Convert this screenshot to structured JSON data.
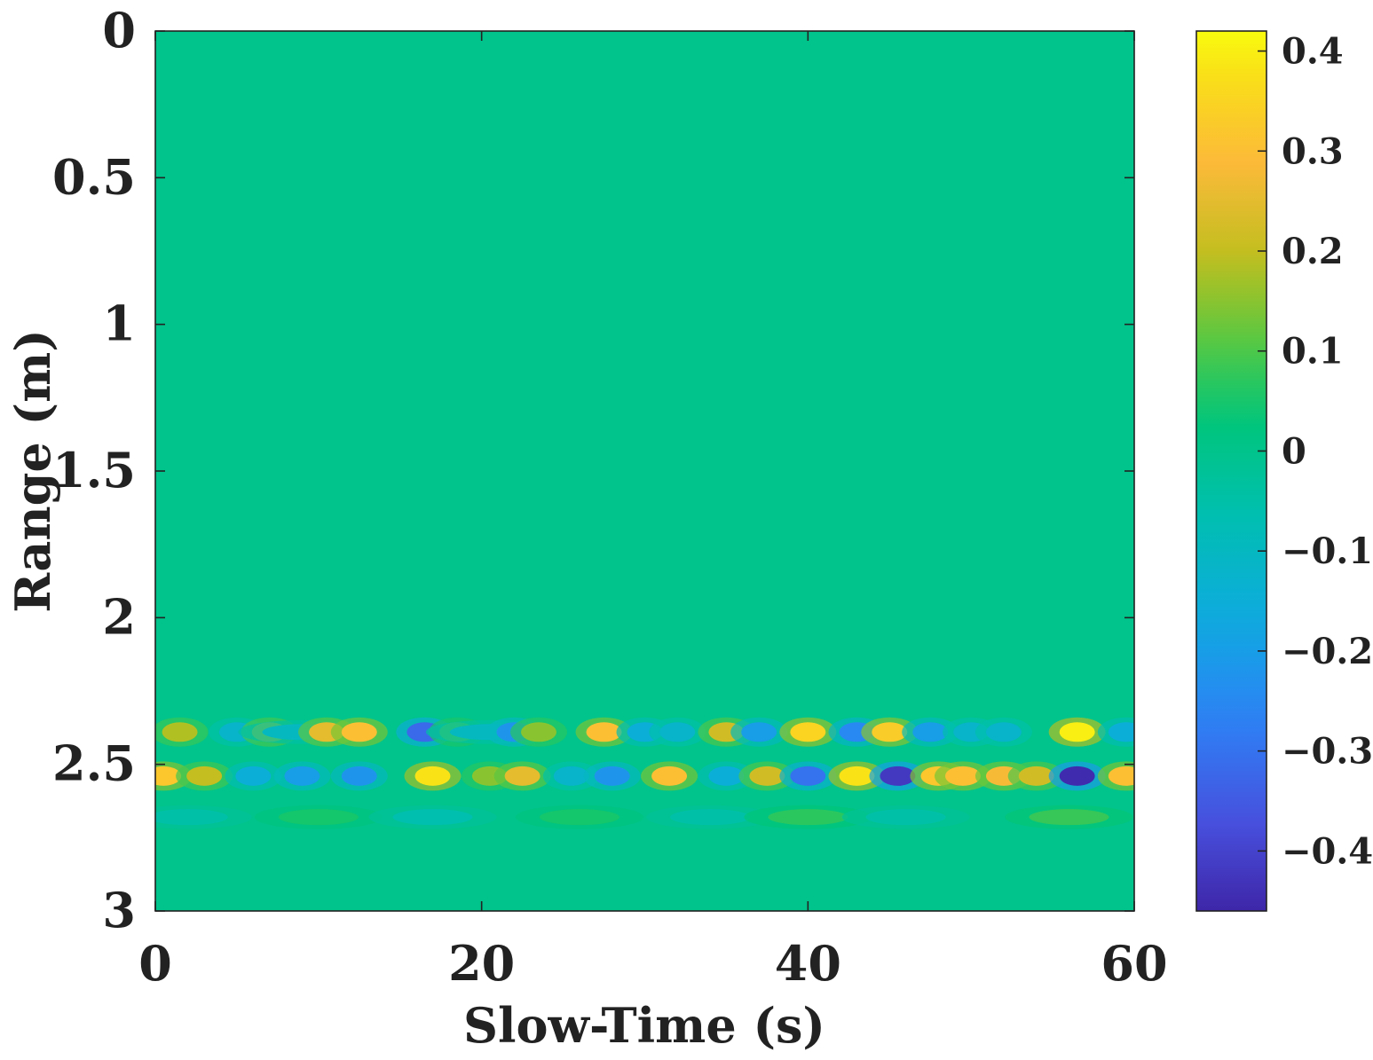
{
  "chart_data": {
    "type": "heatmap",
    "title": "",
    "xlabel": "Slow-Time (s)",
    "ylabel": "Range (m)",
    "xlim": [
      0,
      60
    ],
    "ylim": [
      0,
      3
    ],
    "y_axis_direction": "reversed",
    "x_ticks": [
      "0",
      "20",
      "40",
      "60"
    ],
    "y_ticks": [
      "0",
      "0.5",
      "1",
      "1.5",
      "2",
      "2.5",
      "3"
    ],
    "colorbar": {
      "range": [
        -0.46,
        0.42
      ],
      "ticks": [
        "0.4",
        "0.3",
        "0.2",
        "0.1",
        "0",
        "−0.1",
        "−0.2",
        "−0.3",
        "−0.4"
      ],
      "tick_values": [
        0.4,
        0.3,
        0.2,
        0.1,
        0,
        -0.1,
        -0.2,
        -0.3,
        -0.4
      ],
      "colormap": "parula"
    },
    "background_value": 0,
    "bands": [
      {
        "range_m": 2.39,
        "blobs": [
          {
            "t": 1.5,
            "v": 0.18
          },
          {
            "t": 5,
            "v": -0.12
          },
          {
            "t": 7,
            "v": 0.2
          },
          {
            "t": 9,
            "v": -0.1
          },
          {
            "t": 10.5,
            "v": 0.25
          },
          {
            "t": 12.5,
            "v": 0.3
          },
          {
            "t": 16.5,
            "v": -0.32
          },
          {
            "t": 18.5,
            "v": 0.12
          },
          {
            "t": 20.5,
            "v": -0.1
          },
          {
            "t": 22,
            "v": -0.22
          },
          {
            "t": 23.5,
            "v": 0.15
          },
          {
            "t": 27.5,
            "v": 0.3
          },
          {
            "t": 30,
            "v": -0.15
          },
          {
            "t": 32,
            "v": -0.12
          },
          {
            "t": 35,
            "v": 0.22
          },
          {
            "t": 37,
            "v": -0.2
          },
          {
            "t": 40,
            "v": 0.35
          },
          {
            "t": 43,
            "v": -0.25
          },
          {
            "t": 45,
            "v": 0.33
          },
          {
            "t": 47.5,
            "v": -0.2
          },
          {
            "t": 50,
            "v": -0.12
          },
          {
            "t": 52,
            "v": -0.12
          },
          {
            "t": 56.5,
            "v": 0.4
          },
          {
            "t": 59.5,
            "v": -0.15
          }
        ]
      },
      {
        "range_m": 2.54,
        "blobs": [
          {
            "t": 0.5,
            "v": 0.32
          },
          {
            "t": 3,
            "v": 0.2
          },
          {
            "t": 6,
            "v": -0.15
          },
          {
            "t": 9,
            "v": -0.2
          },
          {
            "t": 12.5,
            "v": -0.22
          },
          {
            "t": 17,
            "v": 0.38
          },
          {
            "t": 20.5,
            "v": 0.15
          },
          {
            "t": 22.5,
            "v": 0.25
          },
          {
            "t": 25.5,
            "v": -0.12
          },
          {
            "t": 28,
            "v": -0.22
          },
          {
            "t": 31.5,
            "v": 0.3
          },
          {
            "t": 35,
            "v": -0.15
          },
          {
            "t": 37.5,
            "v": 0.22
          },
          {
            "t": 40,
            "v": -0.3
          },
          {
            "t": 43,
            "v": 0.38
          },
          {
            "t": 45.5,
            "v": -0.42
          },
          {
            "t": 48,
            "v": 0.32
          },
          {
            "t": 49.5,
            "v": 0.3
          },
          {
            "t": 52,
            "v": 0.28
          },
          {
            "t": 54,
            "v": 0.22
          },
          {
            "t": 56.5,
            "v": -0.45
          },
          {
            "t": 59.5,
            "v": 0.3
          }
        ]
      },
      {
        "range_m": 2.68,
        "blobs": [
          {
            "t": 2,
            "v": -0.05
          },
          {
            "t": 10,
            "v": 0.05
          },
          {
            "t": 17,
            "v": -0.06
          },
          {
            "t": 26,
            "v": 0.05
          },
          {
            "t": 34,
            "v": -0.05
          },
          {
            "t": 40,
            "v": 0.07
          },
          {
            "t": 46,
            "v": -0.05
          },
          {
            "t": 56,
            "v": 0.08
          }
        ]
      }
    ]
  }
}
